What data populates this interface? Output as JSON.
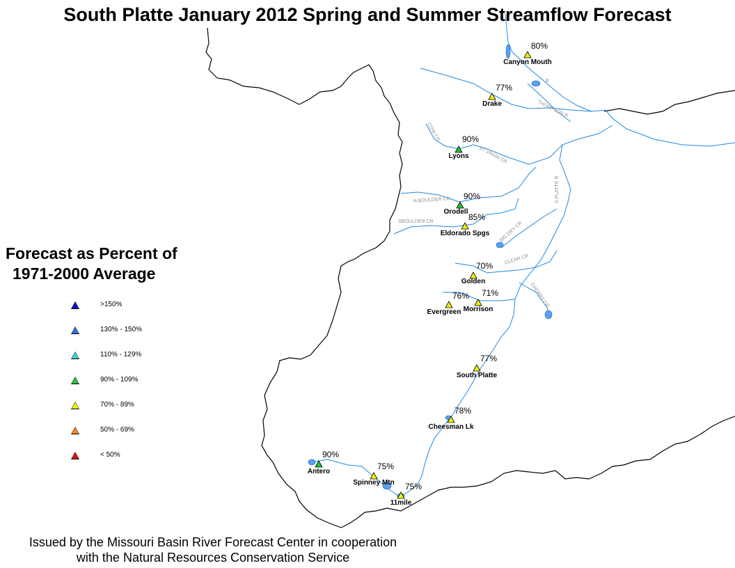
{
  "title": "South Platte January 2012 Spring and Summer Streamflow Forecast",
  "legend": {
    "title_line1": "Forecast as Percent of",
    "title_line2": "1971-2000 Average",
    "items": [
      {
        "label": ">150%",
        "color": "#1010c8"
      },
      {
        "label": "130% - 150%",
        "color": "#2f6fe0"
      },
      {
        "label": "110% - 129%",
        "color": "#3fd4d4"
      },
      {
        "label": "90% - 109%",
        "color": "#22c53a"
      },
      {
        "label": "70% - 89%",
        "color": "#f2f20a"
      },
      {
        "label": "50% - 69%",
        "color": "#f28a1e"
      },
      {
        "label": "< 50%",
        "color": "#e01010"
      }
    ]
  },
  "stations": [
    {
      "name": "Canyon Mouth",
      "percent": "80%",
      "category": 4
    },
    {
      "name": "Drake",
      "percent": "77%",
      "category": 4
    },
    {
      "name": "Lyons",
      "percent": "90%",
      "category": 3
    },
    {
      "name": "Orodell",
      "percent": "90%",
      "category": 3
    },
    {
      "name": "Eldorado Spgs",
      "percent": "85%",
      "category": 4
    },
    {
      "name": "Golden",
      "percent": "70%",
      "category": 4
    },
    {
      "name": "Evergreen",
      "percent": "76%",
      "category": 4
    },
    {
      "name": "Morrison",
      "percent": "71%",
      "category": 4
    },
    {
      "name": "South Platte",
      "percent": "77%",
      "category": 4
    },
    {
      "name": "Cheesman Lk",
      "percent": "78%",
      "category": 4
    },
    {
      "name": "Antero",
      "percent": "90%",
      "category": 3
    },
    {
      "name": "Spinney Mtn",
      "percent": "75%",
      "category": 4
    },
    {
      "name": "11mile",
      "percent": "75%",
      "category": 4
    }
  ],
  "rivers": {
    "thompson": "THOMPSON R",
    "cow_cr": "COW CR",
    "st_vrain": "ST VRAIN CR",
    "n_boulder": "N BOULDER CR",
    "s_boulder": "SBOULDER CR",
    "big_dry": "BIG DRY CR",
    "clear": "CLEAR CR",
    "cherry": "CHERRY CR",
    "s_platte": "S PLATTE R",
    "cache_b": "B"
  },
  "colors": {
    "river": "#1e88e0",
    "boundary": "#000000",
    "lake": "#5aa0f0",
    "river_label": "#909090"
  },
  "footer": {
    "line1": "Issued by the Missouri Basin River Forecast Center in cooperation",
    "line2": "with the Natural Resources Conservation Service"
  }
}
